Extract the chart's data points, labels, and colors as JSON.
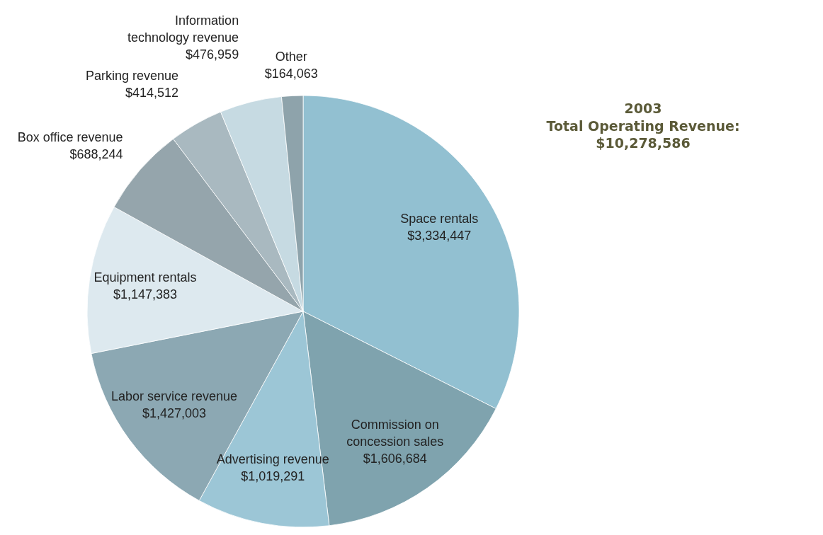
{
  "chart_data": {
    "type": "pie",
    "title": "2003",
    "subtitle": "Total Operating Revenue: $10,278,586",
    "categories": [
      "Space rentals",
      "Commission on concession sales",
      "Advertising revenue",
      "Labor service revenue",
      "Equipment rentals",
      "Box office revenue",
      "Parking revenue",
      "Information technology revenue",
      "Other"
    ],
    "values": [
      3334447,
      1606684,
      1019291,
      1427003,
      1147383,
      688244,
      414512,
      476959,
      164063
    ],
    "colors": [
      "#92c0d1",
      "#7fa3ae",
      "#9cc6d6",
      "#8ca8b3",
      "#dde9ef",
      "#95a5ac",
      "#a9b9c0",
      "#c6dae2",
      "#8ea3ab"
    ],
    "value_labels": [
      "$3,334,447",
      "$1,606,684",
      "$1,019,291",
      "$1,427,003",
      "$1,147,383",
      "$688,244",
      "$414,512",
      "$476,959",
      "$164,063"
    ]
  }
}
